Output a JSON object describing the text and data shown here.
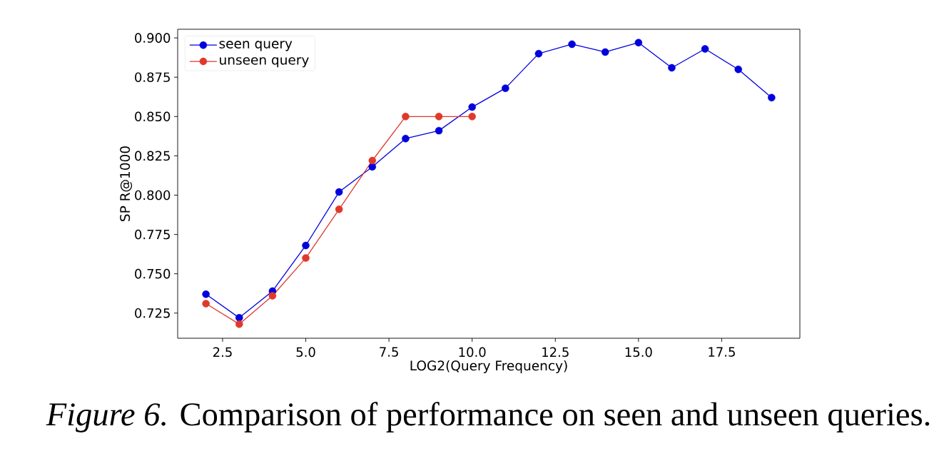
{
  "chart_data": {
    "type": "line",
    "xlabel": "LOG2(Query Frequency)",
    "ylabel": "SP R@1000",
    "annotations": [
      "*Figure 6.* Comparison of performance on seen and unseen queries."
    ],
    "x": [
      2,
      3,
      4,
      5,
      6,
      7,
      8,
      9,
      10,
      11,
      12,
      13,
      14,
      15,
      16,
      17,
      18,
      19
    ],
    "series": [
      {
        "name": "seen query",
        "color": "#0000dd",
        "values": [
          0.737,
          0.722,
          0.739,
          0.768,
          0.802,
          0.818,
          0.836,
          0.841,
          0.856,
          0.868,
          0.89,
          0.896,
          0.891,
          0.897,
          0.881,
          0.893,
          0.88,
          0.862
        ]
      },
      {
        "name": "unseen query",
        "color": "#e0392b",
        "x": [
          2,
          3,
          4,
          5,
          6,
          7,
          8,
          9,
          10
        ],
        "values": [
          0.731,
          0.718,
          0.736,
          0.76,
          0.791,
          0.822,
          0.85,
          0.85,
          0.85
        ]
      }
    ],
    "xlim": [
      1.15,
      19.85
    ],
    "ylim": [
      0.709,
      0.9055
    ],
    "xticks": [
      2.5,
      {
        "value": 5,
        "label": "5.0"
      },
      7.5,
      {
        "value": 10,
        "label": "10.0"
      },
      12.5,
      {
        "value": 15,
        "label": "15.0"
      },
      17.5
    ],
    "yticks": [
      0.725,
      {
        "value": 0.75,
        "label": "0.750"
      },
      0.775,
      {
        "value": 0.8,
        "label": "0.800"
      },
      0.825,
      {
        "value": 0.85,
        "label": "0.850"
      },
      0.875,
      {
        "value": 0.9,
        "label": "0.900"
      }
    ],
    "legend": "top left",
    "marker": "circle",
    "line_style": "solid"
  }
}
